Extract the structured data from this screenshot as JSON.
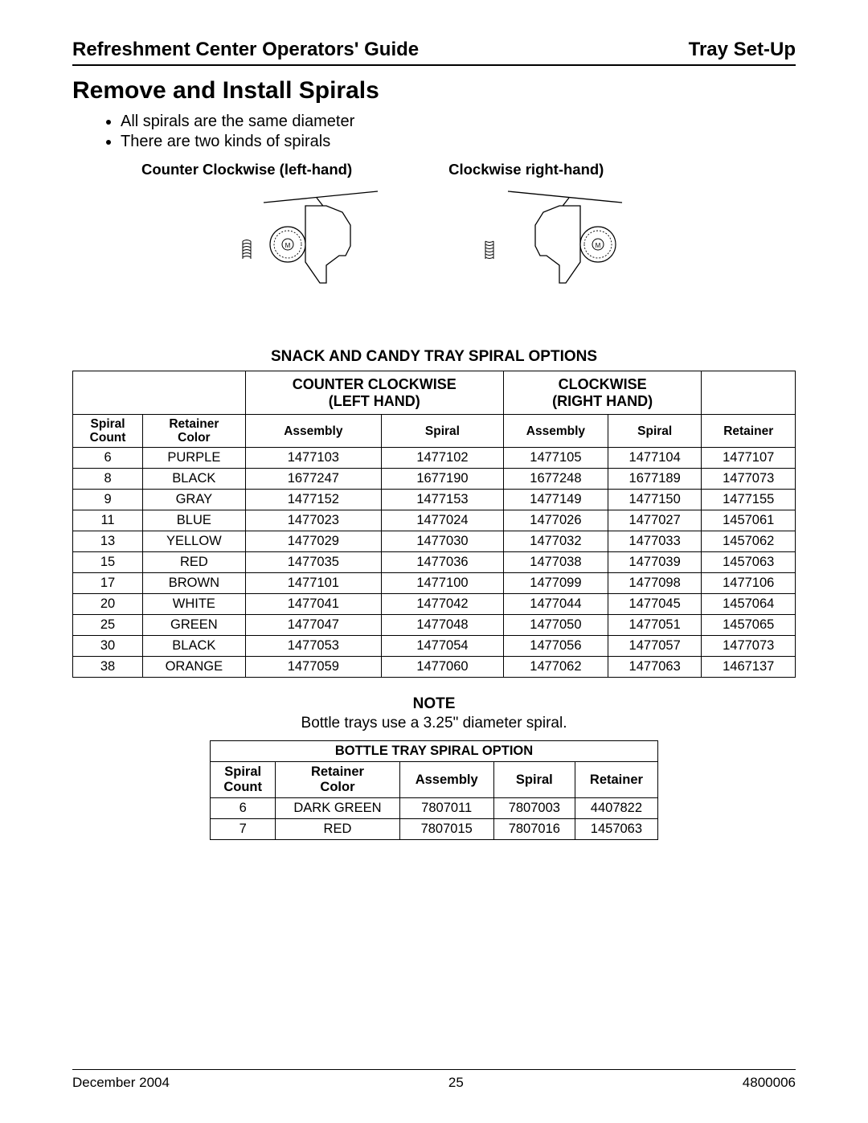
{
  "header": {
    "left": "Refreshment Center Operators' Guide",
    "right": "Tray Set-Up"
  },
  "title": "Remove and Install Spirals",
  "bullets": [
    "All spirals are the same diameter",
    "There are two kinds of spirals"
  ],
  "spiral_labels": {
    "left": "Counter Clockwise (left-hand)",
    "right": "Clockwise right-hand)"
  },
  "table1": {
    "title": "SNACK AND CANDY TRAY SPIRAL OPTIONS",
    "group_headers": {
      "ccw_line1": "COUNTER CLOCKWISE",
      "ccw_line2": "(LEFT HAND)",
      "cw_line1": "CLOCKWISE",
      "cw_line2": "(RIGHT HAND)"
    },
    "sub_headers": {
      "spiral_count_l1": "Spiral",
      "spiral_count_l2": "Count",
      "retainer_color_l1": "Retainer",
      "retainer_color_l2": "Color",
      "assembly": "Assembly",
      "spiral": "Spiral",
      "retainer": "Retainer"
    },
    "rows": [
      [
        "6",
        "PURPLE",
        "1477103",
        "1477102",
        "1477105",
        "1477104",
        "1477107"
      ],
      [
        "8",
        "BLACK",
        "1677247",
        "1677190",
        "1677248",
        "1677189",
        "1477073"
      ],
      [
        "9",
        "GRAY",
        "1477152",
        "1477153",
        "1477149",
        "1477150",
        "1477155"
      ],
      [
        "11",
        "BLUE",
        "1477023",
        "1477024",
        "1477026",
        "1477027",
        "1457061"
      ],
      [
        "13",
        "YELLOW",
        "1477029",
        "1477030",
        "1477032",
        "1477033",
        "1457062"
      ],
      [
        "15",
        "RED",
        "1477035",
        "1477036",
        "1477038",
        "1477039",
        "1457063"
      ],
      [
        "17",
        "BROWN",
        "1477101",
        "1477100",
        "1477099",
        "1477098",
        "1477106"
      ],
      [
        "20",
        "WHITE",
        "1477041",
        "1477042",
        "1477044",
        "1477045",
        "1457064"
      ],
      [
        "25",
        "GREEN",
        "1477047",
        "1477048",
        "1477050",
        "1477051",
        "1457065"
      ],
      [
        "30",
        "BLACK",
        "1477053",
        "1477054",
        "1477056",
        "1477057",
        "1477073"
      ],
      [
        "38",
        "ORANGE",
        "1477059",
        "1477060",
        "1477062",
        "1477063",
        "1467137"
      ]
    ]
  },
  "note": {
    "title": "NOTE",
    "text": "Bottle trays use a 3.25\" diameter spiral."
  },
  "table2": {
    "title": "BOTTLE TRAY SPIRAL OPTION",
    "headers": {
      "spiral_count_l1": "Spiral",
      "spiral_count_l2": "Count",
      "retainer_color_l1": "Retainer",
      "retainer_color_l2": "Color",
      "assembly": "Assembly",
      "spiral": "Spiral",
      "retainer": "Retainer"
    },
    "rows": [
      [
        "6",
        "DARK GREEN",
        "7807011",
        "7807003",
        "4407822"
      ],
      [
        "7",
        "RED",
        "7807015",
        "7807016",
        "1457063"
      ]
    ]
  },
  "footer": {
    "date": "December 2004",
    "page": "25",
    "docnum": "4800006"
  }
}
